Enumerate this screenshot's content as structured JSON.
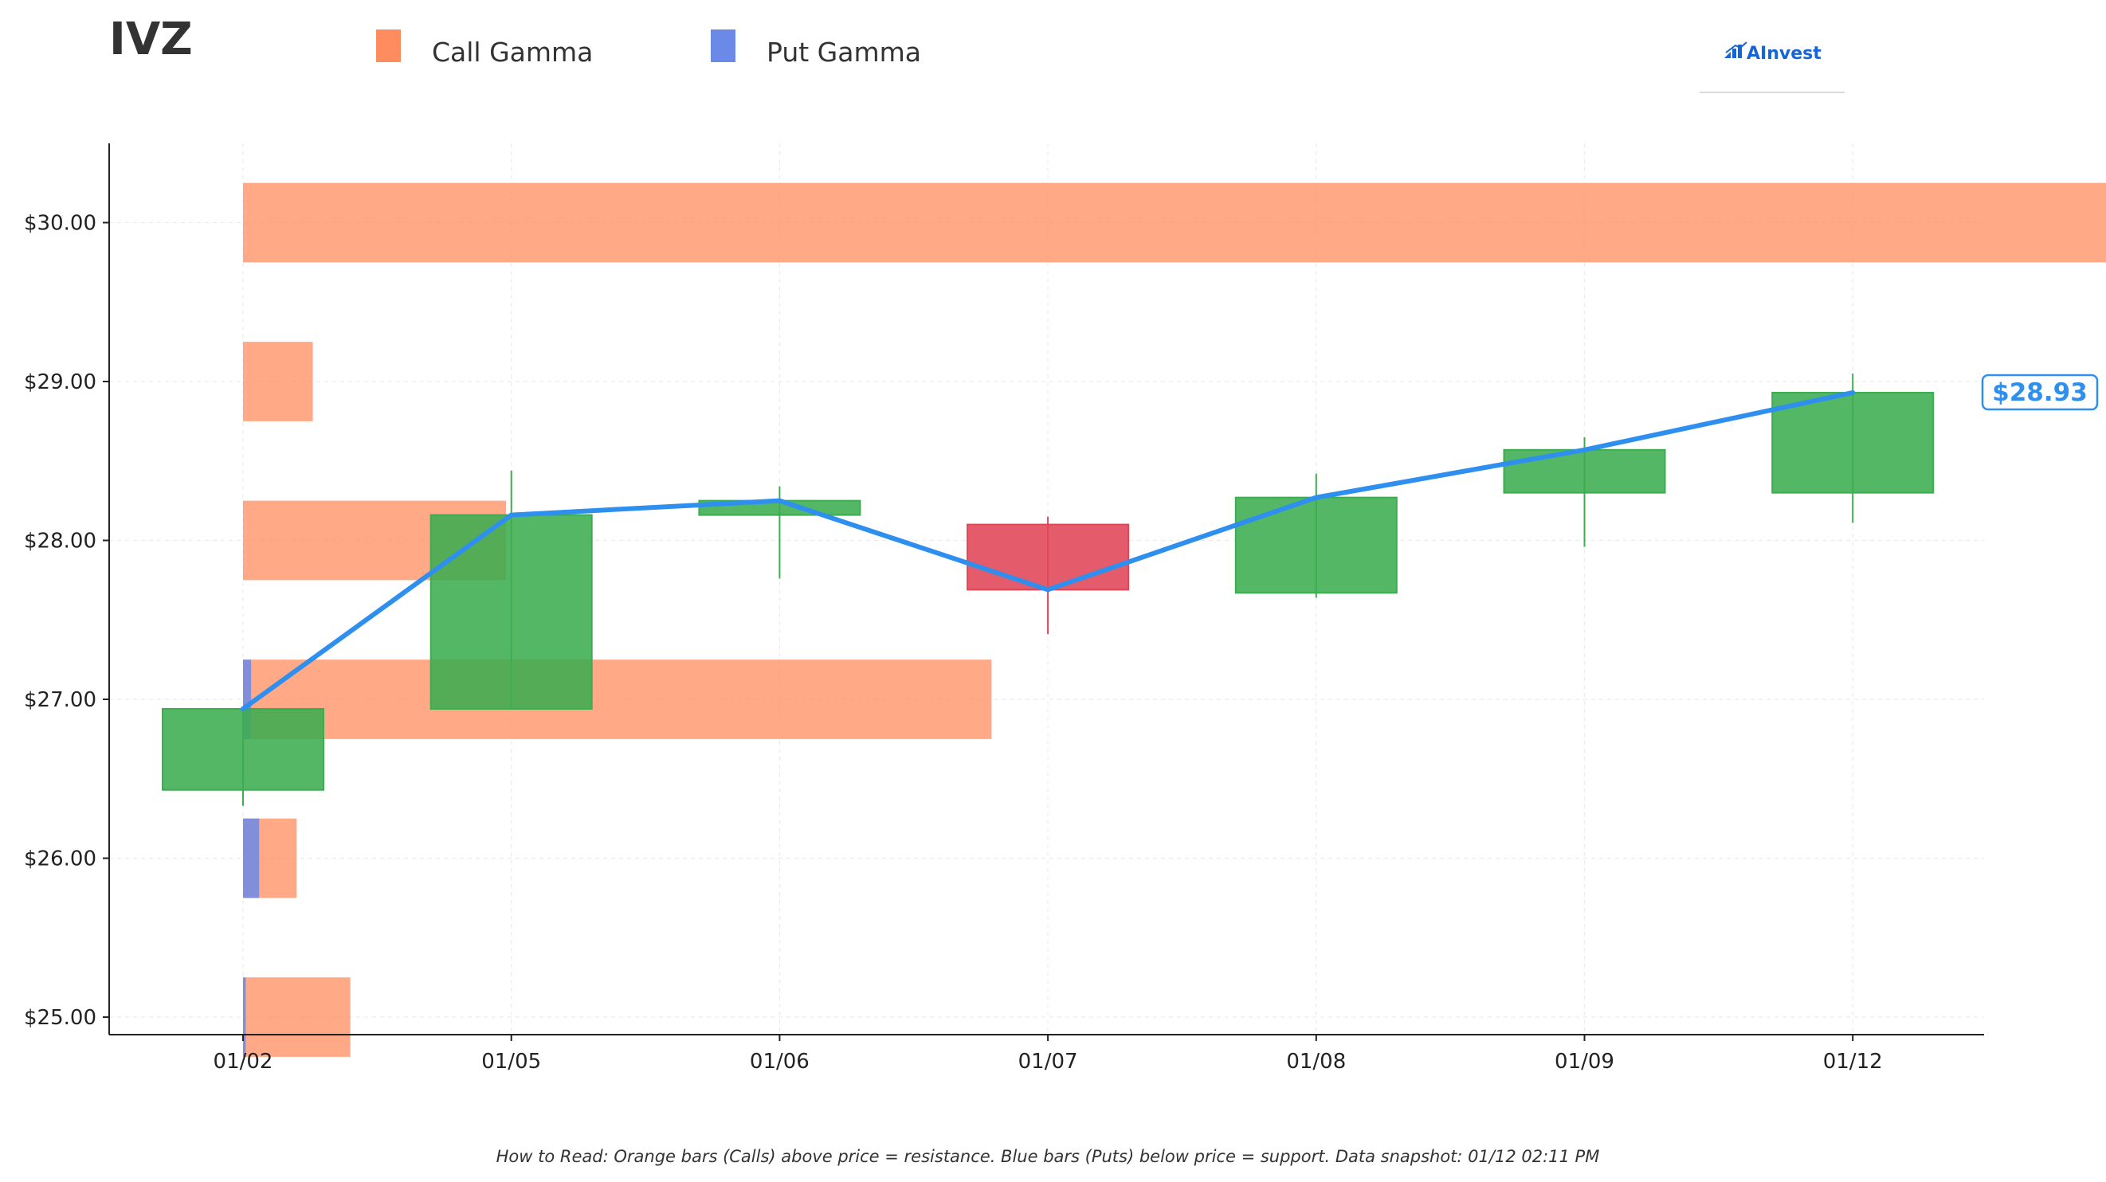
{
  "header": {
    "ticker": "IVZ"
  },
  "legend": {
    "call_label": "Call Gamma",
    "put_label": "Put Gamma",
    "call_color": "#ff8c5f",
    "put_color": "#6b8ae8"
  },
  "brand": {
    "name": "AInvest",
    "color": "#1763d8"
  },
  "footer": {
    "note": "How to Read: Orange bars (Calls) above price = resistance. Blue bars (Puts) below price = support. Data snapshot: 01/12 02:11 PM"
  },
  "price_tag": {
    "label": "$28.93"
  },
  "chart_data": {
    "type": "candlestick",
    "categories": [
      "01/02",
      "01/05",
      "01/06",
      "01/07",
      "01/08",
      "01/09",
      "01/12"
    ],
    "yticks": [
      25,
      26,
      27,
      28,
      29,
      30
    ],
    "ytick_labels": [
      "$25.00",
      "$26.00",
      "$27.00",
      "$28.00",
      "$29.00",
      "$30.00"
    ],
    "ylim": [
      24.9,
      30.5
    ],
    "grid": true,
    "candles": [
      {
        "date": "01/02",
        "open": 26.43,
        "close": 26.94,
        "high": 26.94,
        "low": 26.33
      },
      {
        "date": "01/05",
        "open": 26.94,
        "close": 28.16,
        "high": 28.44,
        "low": 26.94
      },
      {
        "date": "01/06",
        "open": 28.16,
        "close": 28.25,
        "high": 28.34,
        "low": 27.76
      },
      {
        "date": "01/07",
        "open": 28.1,
        "close": 27.69,
        "high": 28.15,
        "low": 27.41
      },
      {
        "date": "01/08",
        "open": 27.67,
        "close": 28.27,
        "high": 28.42,
        "low": 27.64
      },
      {
        "date": "01/09",
        "open": 28.3,
        "close": 28.57,
        "high": 28.65,
        "low": 27.96
      },
      {
        "date": "01/12",
        "open": 28.3,
        "close": 28.93,
        "high": 29.05,
        "low": 28.11
      }
    ],
    "price_line": {
      "values": [
        26.94,
        28.16,
        28.25,
        27.69,
        28.27,
        28.57,
        28.93
      ],
      "color": "#2e8fee"
    },
    "gamma_bars": [
      {
        "strike": 25,
        "call": 0.4,
        "put": 0.01
      },
      {
        "strike": 26,
        "call": 0.2,
        "put": 0.06
      },
      {
        "strike": 27,
        "call": 2.79,
        "put": 0.03
      },
      {
        "strike": 28,
        "call": 0.98,
        "put": 0
      },
      {
        "strike": 29,
        "call": 0.26,
        "put": 0
      },
      {
        "strike": 30,
        "call": 7.0,
        "put": 0
      }
    ],
    "colors": {
      "up": "#3cad50",
      "down": "#e04556"
    }
  }
}
